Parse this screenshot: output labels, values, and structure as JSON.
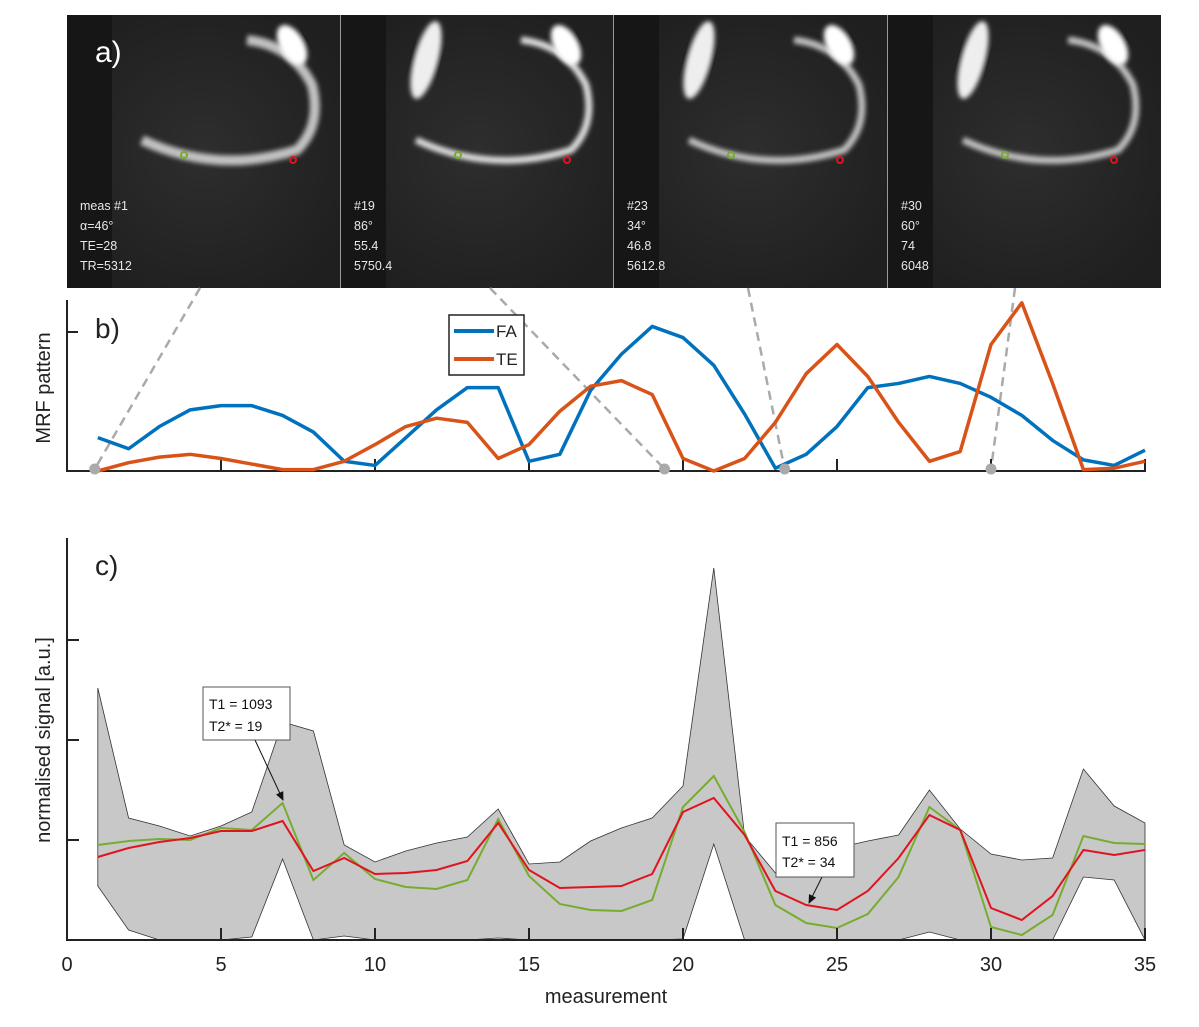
{
  "figure": {
    "panel_a": {
      "label": "a)",
      "images": [
        {
          "lines": [
            "meas #1",
            "α=46°",
            "TE=28",
            "TR=5312"
          ]
        },
        {
          "lines": [
            "#19",
            "86°",
            "55.4",
            "5750.4"
          ]
        },
        {
          "lines": [
            "#23",
            "34°",
            "46.8",
            "5612.8"
          ]
        },
        {
          "lines": [
            "#30",
            "60°",
            "74",
            "6048"
          ]
        }
      ],
      "highlighted_measurements": [
        1,
        19,
        23,
        30
      ]
    },
    "colors": {
      "fa": "#0072BD",
      "te": "#D95319",
      "green": "#77AC30",
      "red": "#E0141E",
      "band": "#c8c8c8",
      "dashed": "#aaaaaa"
    }
  },
  "chart_data": [
    {
      "type": "line",
      "panel_label": "b)",
      "ylabel": "MRF pattern",
      "xlabel": "",
      "xlim": [
        0,
        35
      ],
      "ylim": [
        0,
        1.23
      ],
      "yticks": [
        1
      ],
      "xticks": [
        5,
        10,
        15,
        20,
        25,
        30,
        35
      ],
      "legend": {
        "placement": "top-center",
        "entries": [
          "FA",
          "TE"
        ]
      },
      "x": [
        1,
        2,
        3,
        4,
        5,
        6,
        7,
        8,
        9,
        10,
        11,
        12,
        13,
        14,
        15,
        16,
        17,
        18,
        19,
        20,
        21,
        22,
        23,
        24,
        25,
        26,
        27,
        28,
        29,
        30,
        31,
        32,
        33,
        34,
        35
      ],
      "series": [
        {
          "name": "FA",
          "values": [
            0.24,
            0.16,
            0.32,
            0.44,
            0.47,
            0.47,
            0.4,
            0.28,
            0.07,
            0.04,
            0.24,
            0.44,
            0.6,
            0.6,
            0.07,
            0.12,
            0.58,
            0.84,
            1.04,
            0.96,
            0.76,
            0.41,
            0.02,
            0.12,
            0.32,
            0.6,
            0.63,
            0.68,
            0.63,
            0.53,
            0.4,
            0.22,
            0.08,
            0.04,
            0.15
          ]
        },
        {
          "name": "TE",
          "values": [
            0.0,
            0.06,
            0.1,
            0.12,
            0.09,
            0.05,
            0.01,
            0.01,
            0.07,
            0.19,
            0.32,
            0.38,
            0.35,
            0.09,
            0.19,
            0.43,
            0.61,
            0.65,
            0.55,
            0.09,
            0.0,
            0.09,
            0.35,
            0.7,
            0.91,
            0.68,
            0.35,
            0.07,
            0.14,
            0.91,
            1.21,
            0.63,
            0.01,
            0.02,
            0.07
          ]
        }
      ],
      "markers_x": [
        0.9,
        19.4,
        23.3,
        30
      ]
    },
    {
      "type": "area",
      "panel_label": "c)",
      "xlabel": "measurement",
      "ylabel": "normalised signal [a.u.]",
      "xlim": [
        0,
        35
      ],
      "ylim": [
        0,
        4.02
      ],
      "yticks": [
        1,
        2,
        3
      ],
      "xticks": [
        0,
        5,
        10,
        15,
        20,
        25,
        30,
        35
      ],
      "xtick_labels": [
        "0",
        "5",
        "10",
        "15",
        "20",
        "25",
        "30",
        "35"
      ],
      "x": [
        1,
        2,
        3,
        4,
        5,
        6,
        7,
        8,
        9,
        10,
        11,
        12,
        13,
        14,
        15,
        16,
        17,
        18,
        19,
        20,
        21,
        22,
        23,
        24,
        25,
        26,
        27,
        28,
        29,
        30,
        31,
        32,
        33,
        34,
        35
      ],
      "range_upper": [
        2.52,
        1.22,
        1.14,
        1.04,
        1.14,
        1.28,
        2.18,
        2.09,
        0.95,
        0.78,
        0.89,
        0.97,
        1.03,
        1.31,
        0.76,
        0.78,
        0.99,
        1.12,
        1.22,
        1.54,
        3.72,
        1.04,
        0.67,
        0.85,
        0.92,
        0.99,
        1.05,
        1.5,
        1.11,
        0.86,
        0.8,
        0.82,
        1.71,
        1.34,
        1.17
      ],
      "range_lower": [
        0.54,
        0.1,
        0.0,
        0.0,
        0.0,
        0.03,
        0.81,
        0.0,
        0.04,
        0.0,
        0.0,
        0.0,
        0.0,
        0.02,
        0.0,
        0.0,
        0.0,
        0.0,
        0.0,
        0.01,
        0.96,
        0.0,
        0.0,
        0.0,
        0.0,
        0.0,
        0.0,
        0.08,
        0.0,
        0.0,
        0.0,
        0.0,
        0.63,
        0.6,
        0.0
      ],
      "series": [
        {
          "name": "green",
          "values": [
            0.95,
            0.99,
            1.01,
            1.0,
            1.12,
            1.1,
            1.37,
            0.6,
            0.87,
            0.61,
            0.53,
            0.51,
            0.6,
            1.21,
            0.64,
            0.36,
            0.3,
            0.29,
            0.4,
            1.33,
            1.64,
            1.08,
            0.35,
            0.17,
            0.12,
            0.26,
            0.63,
            1.33,
            1.1,
            0.13,
            0.05,
            0.25,
            1.04,
            0.97,
            0.96
          ]
        },
        {
          "name": "red",
          "values": [
            0.83,
            0.92,
            0.98,
            1.02,
            1.09,
            1.09,
            1.19,
            0.69,
            0.82,
            0.66,
            0.67,
            0.7,
            0.79,
            1.17,
            0.7,
            0.52,
            0.53,
            0.54,
            0.66,
            1.28,
            1.42,
            1.05,
            0.49,
            0.35,
            0.3,
            0.49,
            0.82,
            1.25,
            1.1,
            0.32,
            0.2,
            0.44,
            0.9,
            0.85,
            0.9
          ]
        }
      ],
      "annotations": [
        {
          "lines": [
            "T1 = 1093",
            "T2* = 19"
          ],
          "points_to": {
            "x": 7,
            "series": "green"
          }
        },
        {
          "lines": [
            "T1 = 856",
            "T2* = 34"
          ],
          "points_to": {
            "x": 24,
            "series": "red"
          }
        }
      ]
    }
  ]
}
